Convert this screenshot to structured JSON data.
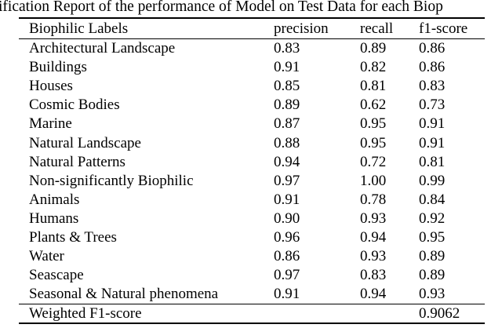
{
  "caption": "ification Report of the performance of Model on Test Data for each Biop",
  "colors": {
    "text": "#000000",
    "background": "#ffffff",
    "rule": "#000000"
  },
  "table": {
    "headers": [
      "Biophilic Labels",
      "precision",
      "recall",
      "f1-score"
    ],
    "rows": [
      {
        "label": "Architectural Landscape",
        "precision": "0.83",
        "recall": "0.89",
        "f1": "0.86"
      },
      {
        "label": "Buildings",
        "precision": "0.91",
        "recall": "0.82",
        "f1": "0.86"
      },
      {
        "label": "Houses",
        "precision": "0.85",
        "recall": "0.81",
        "f1": "0.83"
      },
      {
        "label": "Cosmic Bodies",
        "precision": "0.89",
        "recall": "0.62",
        "f1": "0.73"
      },
      {
        "label": "Marine",
        "precision": "0.87",
        "recall": "0.95",
        "f1": "0.91"
      },
      {
        "label": "Natural Landscape",
        "precision": "0.88",
        "recall": "0.95",
        "f1": "0.91"
      },
      {
        "label": "Natural Patterns",
        "precision": "0.94",
        "recall": "0.72",
        "f1": "0.81"
      },
      {
        "label": "Non-significantly Biophilic",
        "precision": "0.97",
        "recall": "1.00",
        "f1": "0.99"
      },
      {
        "label": "Animals",
        "precision": "0.91",
        "recall": "0.78",
        "f1": "0.84"
      },
      {
        "label": "Humans",
        "precision": "0.90",
        "recall": "0.93",
        "f1": "0.92"
      },
      {
        "label": "Plants & Trees",
        "precision": "0.96",
        "recall": "0.94",
        "f1": "0.95"
      },
      {
        "label": "Water",
        "precision": "0.86",
        "recall": "0.93",
        "f1": "0.89"
      },
      {
        "label": "Seascape",
        "precision": "0.97",
        "recall": "0.83",
        "f1": "0.89"
      },
      {
        "label": "Seasonal & Natural phenomena",
        "precision": "0.91",
        "recall": "0.94",
        "f1": "0.93"
      }
    ],
    "footer": {
      "label": "Weighted F1-score",
      "precision": "",
      "recall": "",
      "f1": "0.9062"
    }
  }
}
